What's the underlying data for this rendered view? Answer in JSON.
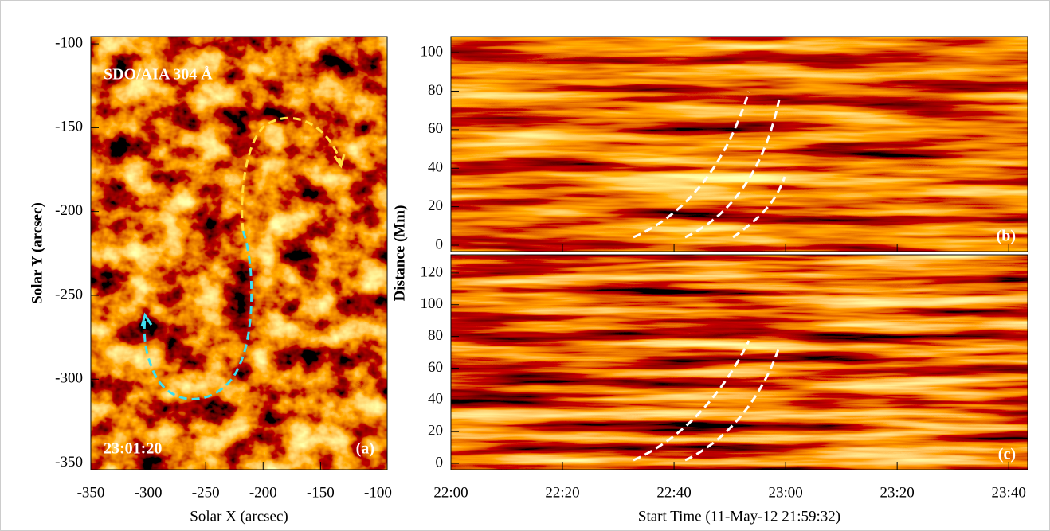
{
  "chart_data": [
    {
      "type": "image",
      "annotations": [
        "SDO/AIA 304 Å",
        "23:01:20",
        "(a)"
      ],
      "xlabel": "Solar X (arcsec)",
      "ylabel": "Solar Y (arcsec)",
      "xlim": [
        -350,
        -92
      ],
      "ylim": [
        -354,
        -95.7
      ],
      "xticks": [
        -350,
        -300,
        -250,
        -200,
        -150,
        -100
      ],
      "yticks": [
        -350,
        -300,
        -250,
        -200,
        -150,
        -100
      ]
    },
    {
      "type": "image",
      "annotations": [
        "(b)"
      ],
      "ylim": [
        -3.3,
        108.3
      ],
      "yticks": [
        0,
        20,
        40,
        60,
        80,
        100
      ]
    },
    {
      "type": "image",
      "annotations": [
        "(c)"
      ],
      "xlabel": "Start Time (11-May-12 21:59:32)",
      "ylabel": "Distance (Mm)",
      "xlim": [
        0,
        103.4
      ],
      "xticks": [
        {
          "value": 0,
          "label": "22:00"
        },
        {
          "value": 20,
          "label": "22:20"
        },
        {
          "value": 40,
          "label": "22:40"
        },
        {
          "value": 60,
          "label": "23:00"
        },
        {
          "value": 80,
          "label": "23:20"
        },
        {
          "value": 100,
          "label": "23:40"
        }
      ],
      "ylim": [
        -4,
        131.5
      ],
      "yticks": [
        0,
        20,
        40,
        60,
        80,
        100,
        120
      ]
    }
  ]
}
